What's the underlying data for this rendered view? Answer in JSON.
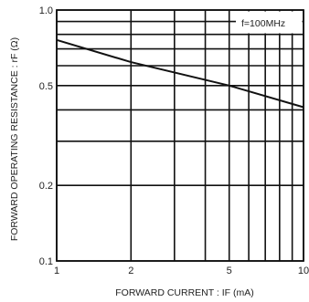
{
  "chart_data": {
    "type": "line",
    "xlabel": "FORWARD CURRENT : IF (mA)",
    "ylabel": "FORWARD OPERATING RESISTANCE : rF (Ω)",
    "x_scale": "log",
    "y_scale": "log",
    "xlim": [
      1,
      10
    ],
    "ylim": [
      0.1,
      1.0
    ],
    "x_ticks": [
      1,
      2,
      5,
      10
    ],
    "x_tick_labels": [
      "1",
      "2",
      "5",
      "10"
    ],
    "y_ticks": [
      0.1,
      0.2,
      0.5,
      1.0
    ],
    "y_tick_labels": [
      "0.1",
      "0.2",
      "0.5",
      "1.0"
    ],
    "x_grid": [
      1,
      2,
      3,
      4,
      5,
      6,
      7,
      8,
      9,
      10
    ],
    "y_grid": [
      0.1,
      0.2,
      0.3,
      0.4,
      0.5,
      0.6,
      0.7,
      0.8,
      0.9,
      1.0
    ],
    "grid": true,
    "annotation": "f=100MHz",
    "series": [
      {
        "x": [
          1,
          2,
          5,
          10
        ],
        "y": [
          0.76,
          0.62,
          0.5,
          0.41
        ]
      }
    ]
  }
}
